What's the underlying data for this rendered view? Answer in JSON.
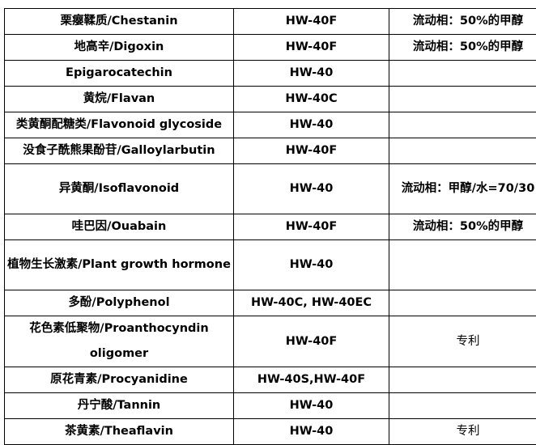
{
  "rows": [
    {
      "compound": "栗瘿鞣质/Chestanin",
      "resin": "HW-40F",
      "note": "流动相：50%的甲醇"
    },
    {
      "compound": "地高辛/Digoxin",
      "resin": "HW-40F",
      "note": "流动相：50%的甲醇"
    },
    {
      "compound": "Epigarocatechin",
      "resin": "HW-40",
      "note": ""
    },
    {
      "compound": "黄烷/Flavan",
      "resin": "HW-40C",
      "note": ""
    },
    {
      "compound": "类黄酮配糖类/Flavonoid glycoside",
      "resin": "HW-40",
      "note": ""
    },
    {
      "compound": "没食子酰熊果酚苷/Galloylarbutin",
      "resin": "HW-40F",
      "note": ""
    },
    {
      "compound": "异黄酮/Isoflavonoid",
      "resin": "HW-40",
      "note": "流动相：甲醇/水=70/30"
    },
    {
      "compound": "哇巴因/Ouabain",
      "resin": "HW-40F",
      "note": "流动相：50%的甲醇"
    },
    {
      "compound": "植物生长激素/Plant growth hormone",
      "resin": "HW-40",
      "note": ""
    },
    {
      "compound": "多酚/Polyphenol",
      "resin": "HW-40C, HW-40EC",
      "note": ""
    },
    {
      "compound": "花色素低聚物/Proanthocyndin oligomer",
      "resin": "HW-40F",
      "note": "专利"
    },
    {
      "compound": "原花青素/Procyanidine",
      "resin": "HW-40S,HW-40F",
      "note": ""
    },
    {
      "compound": "丹宁酸/Tannin",
      "resin": "HW-40",
      "note": ""
    },
    {
      "compound": "茶黄素/Theaflavin",
      "resin": "HW-40",
      "note": "专利"
    }
  ]
}
